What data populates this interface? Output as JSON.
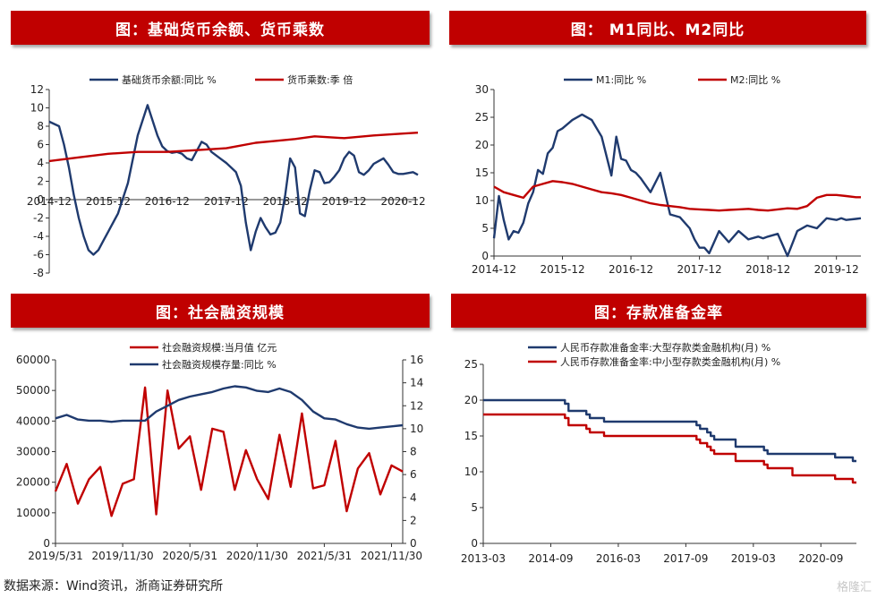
{
  "source": "数据来源：Wind资讯，浙商证券研究所",
  "watermark": "格隆汇",
  "charts": [
    {
      "title": "图：基础货币余额、货币乘数",
      "chart_data": {
        "type": "line",
        "ylim": [
          -8,
          12
        ],
        "yticks": [
          "12",
          "10",
          "8",
          "6",
          "4",
          "2",
          "0",
          "-2",
          "-4",
          "-6",
          "-8"
        ],
        "xticks": [
          "2014-12",
          "2015-12",
          "2016-12",
          "2017-12",
          "2018-12",
          "2019-12",
          "2020-12"
        ],
        "xrange": [
          0,
          75
        ],
        "grid": false,
        "legend": "top",
        "series": [
          {
            "name": "基础货币余额:同比 %",
            "color": "#1f3a6e",
            "x": [
              0,
              2,
              3,
              4,
              5,
              6,
              7,
              8,
              9,
              10,
              11,
              12,
              14,
              16,
              18,
              20,
              22,
              23,
              24,
              25,
              26,
              27,
              28,
              29,
              30,
              31,
              32,
              33,
              34,
              35,
              36,
              37,
              38,
              39,
              40,
              41,
              42,
              43,
              44,
              45,
              46,
              47,
              48,
              49,
              50,
              51,
              52,
              53,
              54,
              55,
              56,
              57,
              58,
              59,
              60,
              61,
              62,
              63,
              64,
              65,
              66,
              67,
              68,
              69,
              70,
              71,
              72,
              73,
              74,
              75
            ],
            "y": [
              8.5,
              8,
              6,
              3.5,
              0.5,
              -2,
              -4,
              -5.5,
              -6,
              -5.5,
              -4.5,
              -3.5,
              -1.5,
              1.8,
              7,
              10.3,
              7,
              5.8,
              5.3,
              5.1,
              5.2,
              5.0,
              4.5,
              4.3,
              5.3,
              6.3,
              6,
              5.2,
              4.8,
              4.4,
              4.0,
              3.5,
              3.0,
              1.5,
              -2.5,
              -5.5,
              -3.5,
              -2.0,
              -3.0,
              -3.8,
              -3.6,
              -2.5,
              0.5,
              4.5,
              3.5,
              -1.5,
              -1.8,
              1.0,
              3.2,
              3.0,
              1.8,
              1.9,
              2.5,
              3.2,
              4.5,
              5.2,
              4.8,
              3.0,
              2.7,
              3.2,
              3.9,
              4.2,
              4.5,
              3.8,
              3.0,
              2.8,
              2.8,
              2.9,
              3.0,
              2.7
            ]
          },
          {
            "name": "货币乘数:季 倍",
            "color": "#c00000",
            "x": [
              0,
              6,
              12,
              18,
              24,
              30,
              36,
              42,
              46,
              50,
              54,
              60,
              66,
              72,
              75
            ],
            "y": [
              4.2,
              4.6,
              5.0,
              5.2,
              5.2,
              5.4,
              5.6,
              6.2,
              6.4,
              6.6,
              6.9,
              6.7,
              7.0,
              7.2,
              7.3
            ]
          }
        ]
      }
    },
    {
      "title": "图： M1同比、M2同比",
      "chart_data": {
        "type": "line",
        "ylim": [
          0,
          30
        ],
        "yticks": [
          "30",
          "25",
          "20",
          "15",
          "10",
          "5",
          "0"
        ],
        "xticks": [
          "2014-12",
          "2015-12",
          "2016-12",
          "2017-12",
          "2018-12",
          "2019-12"
        ],
        "xrange": [
          0,
          75
        ],
        "grid": false,
        "legend": "top",
        "series": [
          {
            "name": "M1:同比 %",
            "color": "#1f3a6e",
            "x": [
              0,
              1,
              2,
              3,
              4,
              5,
              6,
              7,
              8,
              9,
              10,
              11,
              12,
              13,
              14,
              16,
              18,
              20,
              22,
              24,
              25,
              26,
              27,
              28,
              29,
              30,
              32,
              34,
              36,
              38,
              40,
              41,
              42,
              43,
              44,
              46,
              48,
              50,
              52,
              54,
              55,
              56,
              58,
              60,
              62,
              64,
              66,
              68,
              70,
              71,
              72,
              74,
              75
            ],
            "y": [
              3.2,
              10.8,
              6.5,
              3,
              4.5,
              4.2,
              6,
              9.5,
              11.5,
              15.5,
              14.8,
              18.5,
              19.5,
              22.5,
              23,
              24.5,
              25.5,
              24.5,
              21.5,
              14.5,
              21.5,
              17.5,
              17.2,
              15.5,
              15.0,
              14.0,
              11.5,
              15.0,
              7.5,
              7.0,
              5.0,
              3.0,
              1.5,
              1.5,
              0.5,
              4.5,
              2.5,
              4.5,
              3.0,
              3.5,
              3.2,
              3.5,
              4.0,
              0.0,
              4.5,
              5.5,
              5.0,
              6.8,
              6.5,
              6.8,
              6.5,
              6.7,
              6.8
            ]
          },
          {
            "name": "M2:同比 %",
            "color": "#c00000",
            "x": [
              0,
              2,
              4,
              6,
              8,
              10,
              12,
              14,
              16,
              18,
              20,
              22,
              24,
              26,
              28,
              30,
              32,
              34,
              36,
              38,
              40,
              42,
              44,
              46,
              48,
              50,
              52,
              54,
              56,
              58,
              60,
              62,
              64,
              66,
              68,
              70,
              72,
              74,
              75
            ],
            "y": [
              12.5,
              11.5,
              11.0,
              10.5,
              12.5,
              13.0,
              13.5,
              13.3,
              13.0,
              12.5,
              12.0,
              11.5,
              11.3,
              11.0,
              10.5,
              10.0,
              9.5,
              9.2,
              9.0,
              8.8,
              8.5,
              8.4,
              8.3,
              8.2,
              8.3,
              8.4,
              8.5,
              8.3,
              8.2,
              8.4,
              8.6,
              8.5,
              9.0,
              10.5,
              11.0,
              11.0,
              10.8,
              10.6,
              10.6
            ]
          }
        ]
      }
    },
    {
      "title": "图：社会融资规模",
      "chart_data": {
        "type": "line",
        "ylim": [
          0,
          60000
        ],
        "ylim_right": [
          0,
          16
        ],
        "yticks": [
          "60000",
          "50000",
          "40000",
          "30000",
          "20000",
          "10000",
          "0"
        ],
        "yticks_right": [
          "16",
          "14",
          "12",
          "10",
          "8",
          "6",
          "4",
          "2",
          "0"
        ],
        "xticks": [
          "2019/5/31",
          "2019/11/30",
          "2020/5/31",
          "2020/11/30",
          "2021/5/31",
          "2021/11/30"
        ],
        "xrange": [
          0,
          31
        ],
        "grid": false,
        "legend": "top",
        "series": [
          {
            "name": "社会融资规模:当月值 亿元",
            "color": "#c00000",
            "axis": "left",
            "x": [
              0,
              1,
              2,
              3,
              4,
              5,
              6,
              7,
              8,
              9,
              10,
              11,
              12,
              13,
              14,
              15,
              16,
              17,
              18,
              19,
              20,
              21,
              22,
              23,
              24,
              25,
              26,
              27,
              28,
              29,
              30,
              31
            ],
            "y": [
              17000,
              26000,
              13000,
              21000,
              25000,
              9000,
              19500,
              21000,
              51000,
              9500,
              50000,
              31000,
              35000,
              17500,
              37500,
              36500,
              17500,
              30500,
              21000,
              14500,
              35500,
              18500,
              42500,
              18000,
              19000,
              33500,
              10500,
              24500,
              29500,
              16000,
              25500,
              23500
            ]
          },
          {
            "name": "社会融资规模存量:同比 %",
            "color": "#1f3a6e",
            "axis": "right",
            "x": [
              0,
              1,
              2,
              3,
              4,
              5,
              6,
              7,
              8,
              9,
              10,
              11,
              12,
              13,
              14,
              15,
              16,
              17,
              18,
              19,
              20,
              21,
              22,
              23,
              24,
              25,
              26,
              27,
              28,
              29,
              30,
              31
            ],
            "y": [
              10.9,
              11.2,
              10.8,
              10.7,
              10.7,
              10.6,
              10.7,
              10.7,
              10.7,
              11.5,
              12.0,
              12.5,
              12.8,
              13.0,
              13.2,
              13.5,
              13.7,
              13.6,
              13.3,
              13.2,
              13.5,
              13.2,
              12.5,
              11.5,
              10.9,
              10.8,
              10.4,
              10.1,
              10.0,
              10.1,
              10.2,
              10.3
            ]
          }
        ]
      }
    },
    {
      "title": "图：存款准备金率",
      "chart_data": {
        "type": "line",
        "ylim": [
          0,
          25
        ],
        "yticks": [
          "25",
          "20",
          "15",
          "10",
          "5",
          "0"
        ],
        "xticks": [
          "2013-03",
          "2014-09",
          "2016-03",
          "2017-09",
          "2019-03",
          "2020-09"
        ],
        "xrange": [
          0,
          105
        ],
        "grid": false,
        "legend": "top",
        "series": [
          {
            "name": "人民币存款准备金率:大型存款类金融机构(月) %",
            "color": "#1f3a6e",
            "step": true,
            "x": [
              0,
              22,
              23,
              24,
              27,
              29,
              30,
              32,
              34,
              36,
              59,
              60,
              61,
              63,
              64,
              65,
              70,
              71,
              72,
              73,
              79,
              80,
              98,
              99,
              103,
              104
            ],
            "y": [
              20,
              20,
              19.5,
              18.5,
              18.5,
              18,
              17.5,
              17.5,
              17,
              17,
              17,
              16.5,
              16,
              15.5,
              15,
              14.5,
              14.5,
              13.5,
              13.5,
              13.5,
              13,
              12.5,
              12.5,
              12,
              12,
              11.5
            ]
          },
          {
            "name": "人民币存款准备金率:中小型存款类金融机构(月) %",
            "color": "#c00000",
            "step": true,
            "x": [
              0,
              22,
              23,
              24,
              27,
              29,
              30,
              32,
              34,
              36,
              59,
              60,
              61,
              63,
              64,
              65,
              70,
              71,
              72,
              73,
              79,
              80,
              86,
              87,
              98,
              99,
              103,
              104
            ],
            "y": [
              18,
              18,
              17.5,
              16.5,
              16.5,
              16,
              15.5,
              15.5,
              15,
              15,
              15,
              14.5,
              14,
              13.5,
              13,
              12.5,
              12.5,
              11.5,
              11.5,
              11.5,
              11,
              10.5,
              10.5,
              9.5,
              9.5,
              9,
              9,
              8.5
            ]
          }
        ]
      }
    }
  ]
}
